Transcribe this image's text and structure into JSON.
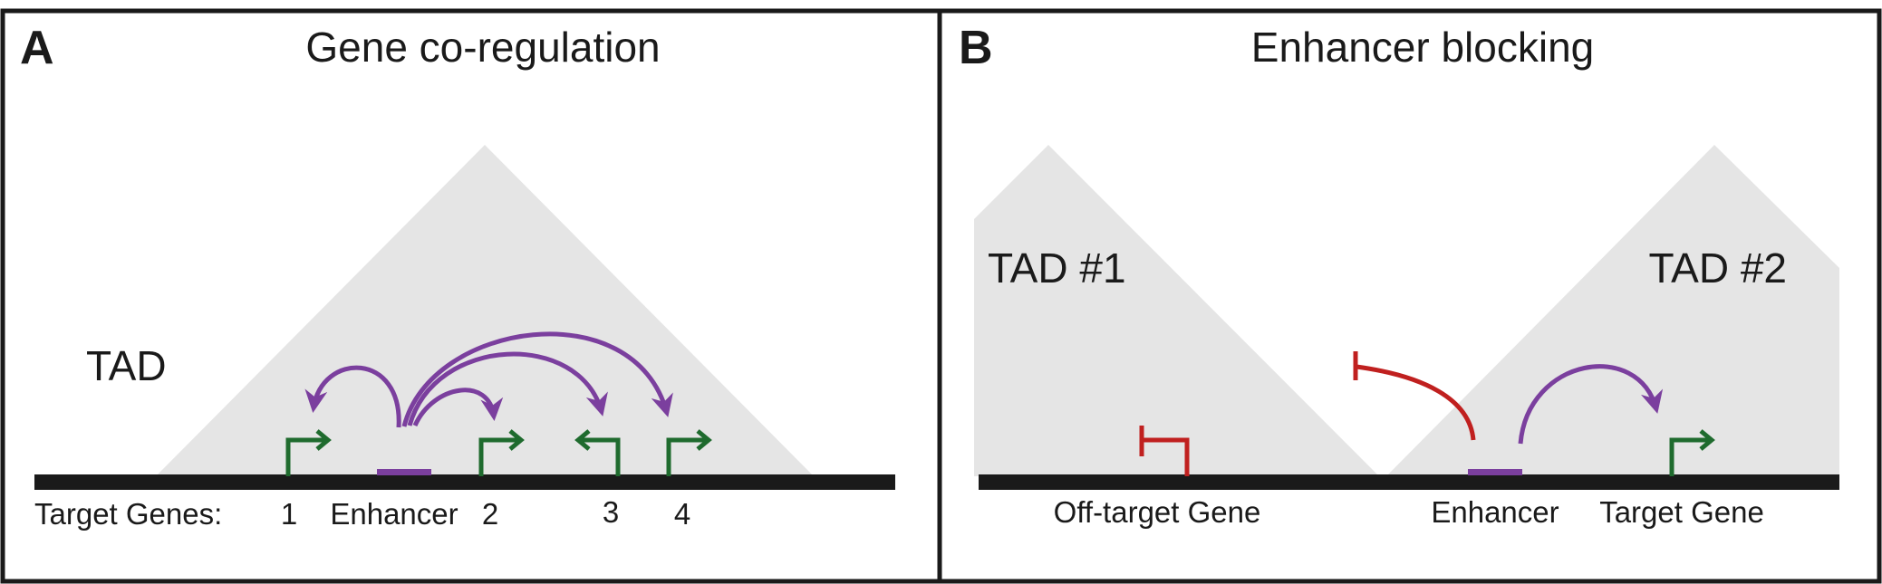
{
  "colors": {
    "frame": "#1a1a1a",
    "tad_fill": "#e5e5e5",
    "chromosome": "#1a1a1a",
    "enhancer": "#7b3f9e",
    "promoter_arrow": "#1f6b2e",
    "interaction_arrow": "#7b3f9e",
    "block_symbol": "#c0201f"
  },
  "panel_a": {
    "letter": "A",
    "title": "Gene co-regulation",
    "tad_label": "TAD",
    "labels": {
      "target_genes": "Target Genes:",
      "gene_1": "1",
      "enhancer": "Enhancer",
      "gene_2": "2",
      "gene_3": "3",
      "gene_4": "4"
    }
  },
  "panel_b": {
    "letter": "B",
    "title": "Enhancer blocking",
    "tad1_label": "TAD #1",
    "tad2_label": "TAD #2",
    "labels": {
      "off_target_gene": "Off-target Gene",
      "enhancer": "Enhancer",
      "target_gene": "Target Gene"
    }
  }
}
